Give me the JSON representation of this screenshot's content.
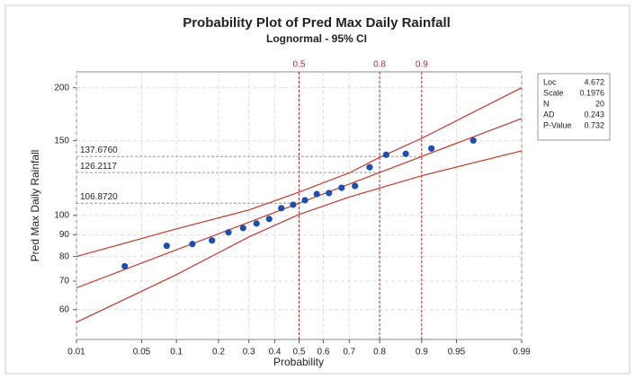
{
  "chart_data": {
    "type": "probability-plot",
    "title": "Probability Plot of Pred Max Daily Rainfall",
    "subtitle": "Lognormal - 95% CI",
    "x_label": "Probability",
    "y_label": "Pred Max Daily Rainfall",
    "x_scale": "normal-probability",
    "y_scale": "log",
    "grid": true,
    "xlim": [
      0.01,
      0.99
    ],
    "ylim": [
      51,
      218
    ],
    "xticks": [
      0.01,
      0.05,
      0.1,
      0.2,
      0.3,
      0.4,
      0.5,
      0.6,
      0.7,
      0.8,
      0.9,
      0.95,
      0.99
    ],
    "yticks": [
      60,
      70,
      80,
      90,
      100,
      150,
      200
    ],
    "points": {
      "color": "#1f4fa8",
      "x": [
        0.0343,
        0.0833,
        0.1324,
        0.1814,
        0.2304,
        0.2794,
        0.3284,
        0.3775,
        0.4265,
        0.4755,
        0.5245,
        0.5735,
        0.6225,
        0.6716,
        0.7206,
        0.7696,
        0.8186,
        0.8676,
        0.9167,
        0.9657
      ],
      "values": [
        75.9,
        84.8,
        85.6,
        87.3,
        91.2,
        93.4,
        95.7,
        98.1,
        104,
        106,
        108.6,
        112.3,
        112.9,
        116.2,
        117.3,
        129.9,
        139,
        139.7,
        143.8,
        150.2
      ]
    },
    "fit": {
      "color": "#c0392b",
      "x": [
        0.01,
        0.99
      ],
      "values": [
        67.5,
        169.3
      ]
    },
    "ci_upper": {
      "color": "#c0392b",
      "x": [
        0.01,
        0.1,
        0.3,
        0.5,
        0.7,
        0.8,
        0.9,
        0.99
      ],
      "values": [
        80,
        93,
        103,
        113.5,
        126,
        137,
        152,
        200
      ]
    },
    "ci_lower": {
      "color": "#c0392b",
      "x": [
        0.01,
        0.1,
        0.3,
        0.5,
        0.7,
        0.8,
        0.9,
        0.99
      ],
      "values": [
        56,
        72.5,
        89,
        100.5,
        110.5,
        116,
        124,
        142
      ]
    },
    "reference_lines": [
      {
        "x": 0.5,
        "y": {
          "value": 106.872,
          "label": "106.8720"
        }
      },
      {
        "x": 0.8,
        "y": {
          "value": 126.2117,
          "label": "126.2117"
        }
      },
      {
        "x": 0.9,
        "y": {
          "value": 137.676,
          "label": "137.6760"
        }
      }
    ],
    "reference_color": "#b03030",
    "stats": [
      {
        "label": "Loc",
        "value": 4.672
      },
      {
        "label": "Scale",
        "value": 0.1976
      },
      {
        "label": "N",
        "value": 20
      },
      {
        "label": "AD",
        "value": 0.243
      },
      {
        "label": "P-Value",
        "value": 0.732
      }
    ]
  }
}
